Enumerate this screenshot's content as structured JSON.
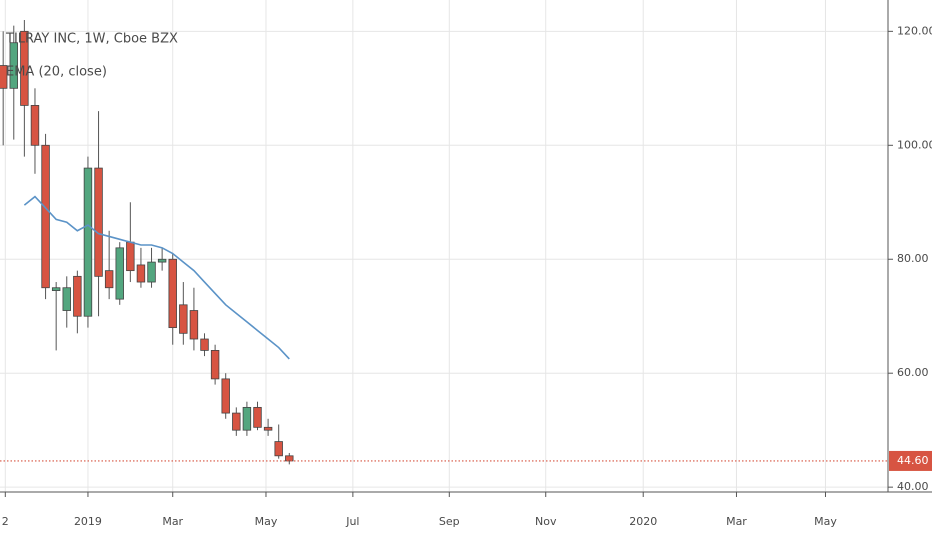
{
  "chart_data": {
    "type": "candlestick",
    "title": "TILRAY INC, 1W, Cboe BZX",
    "indicator": "EMA (20, close)",
    "x": [
      0,
      1,
      2,
      3,
      4,
      5,
      6,
      7,
      8,
      9,
      10,
      11,
      12,
      13,
      14,
      15,
      16,
      17,
      18,
      19,
      20,
      21,
      22,
      23,
      24,
      25,
      26,
      27
    ],
    "open": [
      114,
      110,
      120,
      107,
      100,
      74.5,
      71,
      77,
      70,
      96,
      78,
      73,
      83,
      79,
      76,
      79.5,
      80,
      72,
      71,
      66,
      64,
      59,
      53,
      50,
      54,
      50.5,
      48,
      45.5
    ],
    "high": [
      120,
      121,
      122,
      110,
      102,
      76,
      77,
      78,
      98,
      106,
      85,
      83,
      90,
      82,
      82,
      82,
      81,
      76,
      75,
      67,
      65,
      60,
      54,
      55,
      55,
      52,
      51,
      46
    ],
    "low": [
      100,
      101,
      98,
      95,
      73,
      64,
      68,
      67,
      68,
      70,
      73,
      72,
      76,
      75,
      75,
      78,
      65,
      65,
      64,
      63,
      58,
      52,
      49,
      49,
      50,
      49,
      45,
      44
    ],
    "close": [
      110,
      118,
      107,
      100,
      75,
      75,
      75,
      70,
      96,
      77,
      75,
      82,
      78,
      76,
      79.5,
      80,
      68,
      67,
      66,
      64,
      59,
      53,
      50,
      54,
      50.5,
      50,
      45.5,
      44.6
    ],
    "up_color": "#53a67f",
    "down_color": "#d75442",
    "ema": {
      "name": "EMA (20, close)",
      "color": "#5b93c7",
      "values": [
        null,
        null,
        89.5,
        91,
        89,
        87,
        86.5,
        85,
        86,
        84.5,
        84,
        83.5,
        83,
        82.5,
        82.5,
        82,
        81,
        79.5,
        78,
        76,
        74,
        72,
        70.5,
        69,
        67.5,
        66,
        64.5,
        62.5
      ]
    },
    "xlim": [
      -0.3,
      83.5
    ],
    "xticks": [
      {
        "value": 0.2,
        "label": "2"
      },
      {
        "value": 8,
        "label": "2019"
      },
      {
        "value": 16,
        "label": "Mar"
      },
      {
        "value": 24.8,
        "label": "May"
      },
      {
        "value": 33,
        "label": "Jul"
      },
      {
        "value": 42.1,
        "label": "Sep"
      },
      {
        "value": 51.2,
        "label": "Nov"
      },
      {
        "value": 60.4,
        "label": "2020"
      },
      {
        "value": 69.2,
        "label": "Mar"
      },
      {
        "value": 77.6,
        "label": "May"
      }
    ],
    "ylim": [
      39.5,
      125.5
    ],
    "yticks": [
      {
        "value": 40,
        "label": "40.00"
      },
      {
        "value": 60,
        "label": "60.00"
      },
      {
        "value": 80,
        "label": "80.00"
      },
      {
        "value": 100,
        "label": "100.00"
      },
      {
        "value": 120,
        "label": "120.00"
      }
    ],
    "last_price": {
      "value": 44.6,
      "label": "44.60"
    },
    "grid": true
  }
}
